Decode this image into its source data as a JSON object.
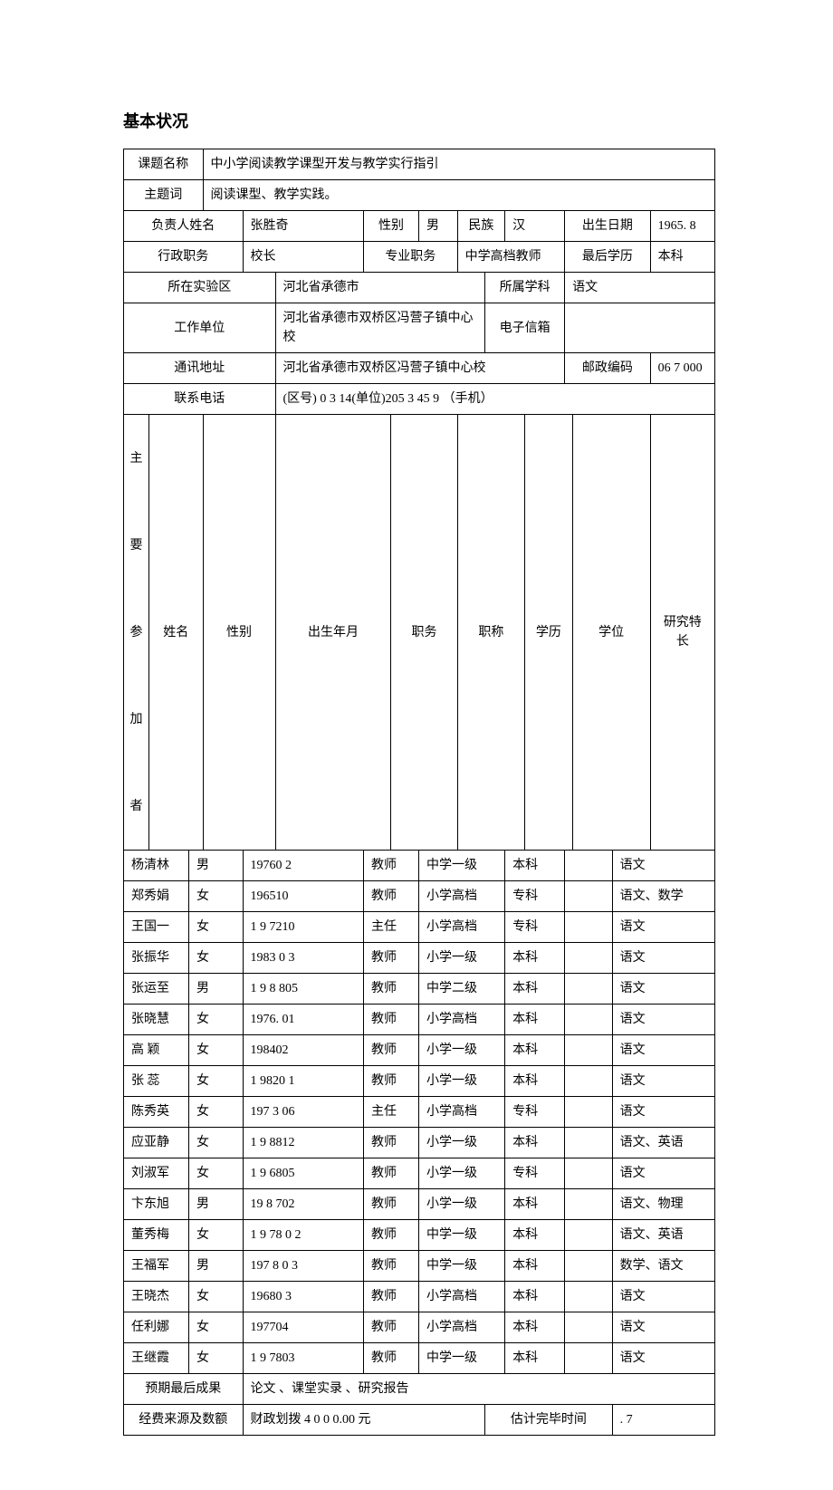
{
  "page_title": "基本状况",
  "labels": {
    "project_name": "课题名称",
    "keywords": "主题词",
    "leader_name": "负责人姓名",
    "gender": "性别",
    "ethnicity": "民族",
    "birth_date": "出生日期",
    "admin_post": "行政职务",
    "pro_post": "专业职务",
    "highest_edu": "最后学历",
    "exp_area": "所在实验区",
    "subject": "所属学科",
    "work_unit": "工作单位",
    "email": "电子信箱",
    "address": "通讯地址",
    "postcode": "邮政编码",
    "phone": "联系电话",
    "vlabel": "主要参加者",
    "final_result": "预期最后成果",
    "funding": "经费来源及数额",
    "est_end": "估计完毕时间"
  },
  "header": {
    "project_name": "中小学阅读教学课型开发与教学实行指引",
    "keywords": "阅读课型、教学实践。",
    "leader_name": "张胜奇",
    "gender": "男",
    "ethnicity": "汉",
    "birth_date": "1965. 8",
    "admin_post": "校长",
    "pro_post": "中学高档教师",
    "highest_edu": "本科",
    "exp_area": "河北省承德市",
    "subject": "语文",
    "work_unit": "河北省承德市双桥区冯营子镇中心校",
    "email": "",
    "address": "河北省承德市双桥区冯营子镇中心校",
    "postcode": "06 7 000",
    "phone": "(区号)  0 3 14(单位)205 3 45 9 （手机）"
  },
  "members": {
    "columns": [
      "姓名",
      "性别",
      "出生年月",
      "职务",
      "职称",
      "学历",
      "学位",
      "研究特长"
    ],
    "rows": [
      [
        "杨清林",
        "男",
        "19760 2",
        "教师",
        "中学一级",
        "本科",
        "",
        "语文"
      ],
      [
        "郑秀娟",
        "女",
        "196510",
        "教师",
        "小学高档",
        "专科",
        "",
        "语文、数学"
      ],
      [
        "王国一",
        "女",
        "1 9 7210",
        "主任",
        "小学高档",
        "专科",
        "",
        "语文"
      ],
      [
        "张振华",
        "女",
        "1983 0 3",
        "教师",
        "小学一级",
        "本科",
        "",
        "语文"
      ],
      [
        "张运至",
        "男",
        "1 9 8 805",
        "教师",
        "中学二级",
        "本科",
        "",
        "语文"
      ],
      [
        "张晓慧",
        "女",
        "1976. 01",
        "教师",
        "小学高档",
        "本科",
        "",
        "语文"
      ],
      [
        "高  颖",
        "女",
        "198402",
        "教师",
        "小学一级",
        "本科",
        "",
        "语文"
      ],
      [
        "张   蕊",
        "女",
        "1 9820 1",
        "教师",
        "小学一级",
        "本科",
        "",
        "语文"
      ],
      [
        "陈秀英",
        "女",
        "197 3 06",
        "主任",
        "小学高档",
        "专科",
        "",
        "语文"
      ],
      [
        "应亚静",
        "女",
        "1 9 8812",
        "教师",
        "小学一级",
        "本科",
        "",
        "语文、英语"
      ],
      [
        "刘淑军",
        "女",
        "1 9 6805",
        "教师",
        "小学一级",
        "专科",
        "",
        "语文"
      ],
      [
        "卞东旭",
        "男",
        "19 8 702",
        "教师",
        "小学一级",
        "本科",
        "",
        "语文、物理"
      ],
      [
        "董秀梅",
        "女",
        "1 9 78 0 2",
        "教师",
        "中学一级",
        "本科",
        "",
        "语文、英语"
      ],
      [
        "王福军",
        "男",
        "197 8 0 3",
        "教师",
        "中学一级",
        "本科",
        "",
        "数学、语文"
      ],
      [
        "王晓杰",
        "女",
        "19680 3",
        "教师",
        "小学高档",
        "本科",
        "",
        "语文"
      ],
      [
        "任利娜",
        "女",
        "197704",
        "教师",
        "小学高档",
        "本科",
        "",
        "语文"
      ],
      [
        "王继霞",
        "女",
        "1 9 7803",
        "教师",
        "中学一级",
        "本科",
        "",
        "语文"
      ]
    ]
  },
  "footer": {
    "final_result": "论文 、课堂实录 、研究报告",
    "funding": "财政划拨 4 0 0 0.00 元",
    "est_end": ". 7"
  }
}
